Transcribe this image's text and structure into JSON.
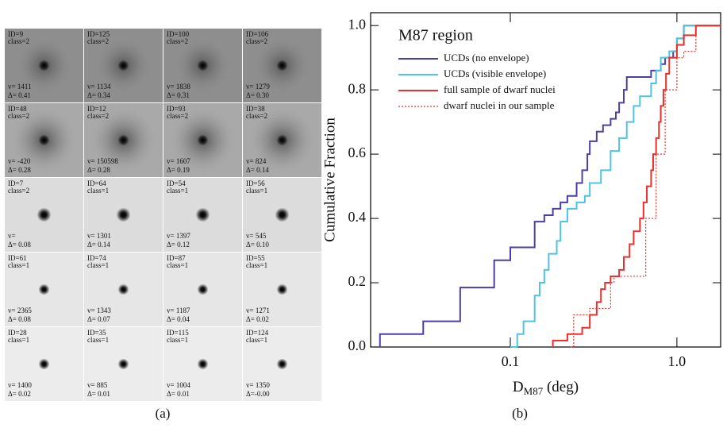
{
  "figure_a": {
    "caption": "(a)",
    "tiles": [
      {
        "id": "ID=9",
        "cls": "class=2",
        "v": "v= 1411",
        "d": "Δ= 0.41"
      },
      {
        "id": "ID=125",
        "cls": "class=2",
        "v": "v= 1134",
        "d": "Δ= 0.34"
      },
      {
        "id": "ID=100",
        "cls": "class=2",
        "v": "v= 1838",
        "d": "Δ= 0.31"
      },
      {
        "id": "ID=106",
        "cls": "class=2",
        "v": "v= 1279",
        "d": "Δ= 0.30"
      },
      {
        "id": "ID=48",
        "cls": "class=2",
        "v": "v= -420",
        "d": "Δ= 0.28"
      },
      {
        "id": "ID=12",
        "cls": "class=2",
        "v": "v= 150598",
        "d": "Δ= 0.28"
      },
      {
        "id": "ID=93",
        "cls": "class=2",
        "v": "v= 1607",
        "d": "Δ= 0.19"
      },
      {
        "id": "ID=38",
        "cls": "class=2",
        "v": "v= 824",
        "d": "Δ= 0.14"
      },
      {
        "id": "ID=7",
        "cls": "class=2",
        "v": "v=",
        "d": "Δ= 0.08"
      },
      {
        "id": "ID=64",
        "cls": "class=1",
        "v": "v= 1301",
        "d": "Δ= 0.14"
      },
      {
        "id": "ID=54",
        "cls": "class=1",
        "v": "v= 1397",
        "d": "Δ= 0.12"
      },
      {
        "id": "ID=56",
        "cls": "class=1",
        "v": "v= 545",
        "d": "Δ= 0.10"
      },
      {
        "id": "ID=61",
        "cls": "class=1",
        "v": "v= 2365",
        "d": "Δ= 0.08"
      },
      {
        "id": "ID=74",
        "cls": "class=1",
        "v": "v= 1343",
        "d": "Δ= 0.07"
      },
      {
        "id": "ID=87",
        "cls": "class=1",
        "v": "v= 1187",
        "d": "Δ= 0.04"
      },
      {
        "id": "ID=55",
        "cls": "class=1",
        "v": "v= 1271",
        "d": "Δ= 0.02"
      },
      {
        "id": "ID=28",
        "cls": "class=1",
        "v": "v= 1400",
        "d": "Δ= 0.02"
      },
      {
        "id": "ID=35",
        "cls": "class=1",
        "v": "v= 885",
        "d": "Δ= 0.01"
      },
      {
        "id": "ID=115",
        "cls": "class=1",
        "v": "v= 1004",
        "d": "Δ= 0.01"
      },
      {
        "id": "ID=124",
        "cls": "class=1",
        "v": "v= 1350",
        "d": "Δ=-0.00"
      }
    ]
  },
  "chart_data": {
    "type": "step",
    "title": "M87 region",
    "caption": "(b)",
    "ylabel": "Cumulative Fraction",
    "xlabel": [
      "D",
      "M87",
      " (deg)"
    ],
    "xlog": true,
    "xlim": [
      0.0145,
      1.83
    ],
    "ylim": [
      0,
      1.04
    ],
    "xticks": [
      0.1,
      {
        "value": 1,
        "label": "1.0"
      }
    ],
    "yticks": [
      {
        "value": 0,
        "label": "0.0"
      },
      0.2,
      0.4,
      0.6,
      0.8,
      {
        "value": 1,
        "label": "1.0"
      }
    ],
    "series": [
      {
        "name": "UCDs (no envelope)",
        "color": "#4b3fa6",
        "dash": false,
        "x": [
          0.0165,
          0.03,
          0.05,
          0.08,
          0.1,
          0.14,
          0.16,
          0.18,
          0.2,
          0.22,
          0.25,
          0.27,
          0.29,
          0.3,
          0.33,
          0.36,
          0.4,
          0.43,
          0.45,
          0.48,
          0.5,
          0.7,
          0.8,
          0.85,
          0.95,
          1.0,
          1.1
        ],
        "values": [
          0.04,
          0.08,
          0.185,
          0.27,
          0.31,
          0.39,
          0.41,
          0.43,
          0.45,
          0.47,
          0.51,
          0.55,
          0.6,
          0.64,
          0.67,
          0.69,
          0.71,
          0.73,
          0.76,
          0.8,
          0.84,
          0.86,
          0.88,
          0.9,
          0.92,
          0.96,
          1.0
        ]
      },
      {
        "name": "UCDs (visible envelope)",
        "color": "#4fc3e0",
        "dash": false,
        "x": [
          0.1,
          0.11,
          0.12,
          0.14,
          0.15,
          0.16,
          0.17,
          0.19,
          0.2,
          0.22,
          0.25,
          0.28,
          0.3,
          0.35,
          0.4,
          0.45,
          0.5,
          0.55,
          0.6,
          0.7,
          0.75,
          0.8,
          0.9,
          1.0,
          1.1
        ],
        "values": [
          0,
          0.04,
          0.08,
          0.16,
          0.2,
          0.24,
          0.29,
          0.33,
          0.39,
          0.43,
          0.45,
          0.47,
          0.51,
          0.55,
          0.61,
          0.65,
          0.7,
          0.75,
          0.78,
          0.82,
          0.86,
          0.9,
          0.92,
          0.96,
          1.0
        ]
      },
      {
        "name": "full sample of dwarf nuclei",
        "color": "#e8302c",
        "dash": false,
        "x": [
          0.18,
          0.22,
          0.27,
          0.3,
          0.33,
          0.35,
          0.37,
          0.4,
          0.45,
          0.48,
          0.52,
          0.55,
          0.6,
          0.63,
          0.66,
          0.7,
          0.72,
          0.75,
          0.78,
          0.8,
          0.83,
          0.86,
          0.9,
          1.0,
          1.1,
          1.3
        ],
        "values": [
          0.02,
          0.04,
          0.06,
          0.1,
          0.14,
          0.18,
          0.2,
          0.22,
          0.24,
          0.28,
          0.32,
          0.36,
          0.4,
          0.45,
          0.5,
          0.55,
          0.6,
          0.65,
          0.7,
          0.75,
          0.8,
          0.85,
          0.9,
          0.94,
          0.97,
          1.0
        ]
      },
      {
        "name": "dwarf nuclei in our sample",
        "color": "#e8302c",
        "dash": true,
        "x": [
          0.23,
          0.24,
          0.3,
          0.4,
          0.42,
          0.65,
          0.75,
          0.85,
          1.0,
          1.1,
          1.3
        ],
        "values": [
          0,
          0.1,
          0.12,
          0.2,
          0.22,
          0.4,
          0.6,
          0.8,
          0.9,
          0.92,
          1.0
        ]
      }
    ]
  }
}
